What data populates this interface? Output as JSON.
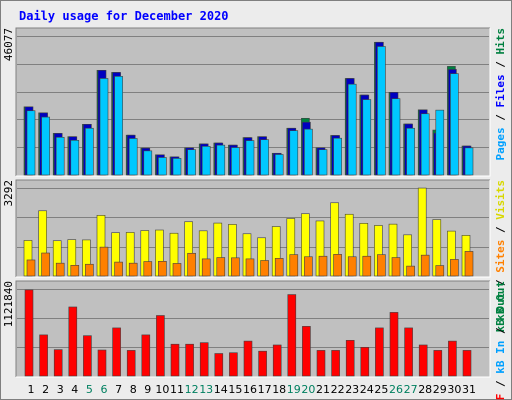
{
  "chart_data": [
    {
      "type": "bar",
      "panel": "hits-files-pages",
      "title": "Daily usage for December 2020",
      "ylabel_max": "46077",
      "ylim": [
        0,
        46077
      ],
      "grid": true,
      "legend": [
        {
          "text": "Pages",
          "color": "#00a0ff"
        },
        {
          "text": "Files",
          "color": "#0000ff"
        },
        {
          "text": "Hits",
          "color": "#008040"
        }
      ],
      "legend_separator": " / ",
      "colors": {
        "hits": "#008040",
        "files": "#0000c0",
        "pages": "#00c8ff"
      },
      "categories": [
        "1",
        "2",
        "3",
        "4",
        "5",
        "6",
        "7",
        "8",
        "9",
        "10",
        "11",
        "12",
        "13",
        "14",
        "15",
        "16",
        "17",
        "18",
        "19",
        "20",
        "21",
        "22",
        "23",
        "24",
        "25",
        "26",
        "27",
        "28",
        "29",
        "30",
        "31"
      ],
      "series": [
        {
          "key": "hits",
          "name": "Hits",
          "values": [
            22600,
            20600,
            13800,
            12700,
            16800,
            34700,
            34000,
            13200,
            8900,
            6700,
            6000,
            9000,
            10300,
            10600,
            9900,
            12400,
            12700,
            7200,
            15500,
            18800,
            9000,
            13100,
            32000,
            26500,
            44000,
            27400,
            16900,
            21600,
            14900,
            36000,
            9600
          ]
        },
        {
          "key": "files",
          "name": "Files",
          "values": [
            22600,
            20600,
            13800,
            12700,
            16800,
            34700,
            34000,
            13200,
            8900,
            6700,
            6000,
            9000,
            10300,
            10600,
            9900,
            12400,
            12700,
            7200,
            15500,
            17500,
            9000,
            13100,
            32000,
            26500,
            44000,
            27400,
            16900,
            21600,
            13900,
            35000,
            9600
          ]
        },
        {
          "key": "pages",
          "name": "Pages",
          "values": [
            21300,
            19200,
            12500,
            11500,
            15500,
            32000,
            32700,
            12100,
            8000,
            5800,
            5500,
            8400,
            9500,
            9900,
            9100,
            11400,
            11700,
            6800,
            14700,
            15200,
            8400,
            12200,
            30100,
            25000,
            42600,
            25300,
            15500,
            20300,
            21500,
            33600,
            9000
          ]
        }
      ]
    },
    {
      "type": "bar",
      "panel": "visits-sites-kbout",
      "ylabel_max": "3292",
      "ylim": [
        0,
        3292
      ],
      "grid": true,
      "legend": [
        {
          "text": "kB Out",
          "color": "#008040"
        },
        {
          "text": "Sites",
          "color": "#ff8000"
        },
        {
          "text": "Visits",
          "color": "#d8d800"
        }
      ],
      "legend_separator": " / ",
      "colors": {
        "visits": "#ffff00",
        "sites": "#ff8000"
      },
      "categories": [
        "1",
        "2",
        "3",
        "4",
        "5",
        "6",
        "7",
        "8",
        "9",
        "10",
        "11",
        "12",
        "13",
        "14",
        "15",
        "16",
        "17",
        "18",
        "19",
        "20",
        "21",
        "22",
        "23",
        "24",
        "25",
        "26",
        "27",
        "28",
        "29",
        "30",
        "31"
      ],
      "series": [
        {
          "key": "visits",
          "name": "Visits",
          "values": [
            1330,
            2440,
            1320,
            1360,
            1350,
            2270,
            1620,
            1630,
            1700,
            1720,
            1600,
            2030,
            1690,
            1980,
            1930,
            1580,
            1430,
            1850,
            2150,
            2330,
            2060,
            2740,
            2310,
            1970,
            1890,
            1940,
            1540,
            3290,
            2110,
            1680,
            1520
          ]
        },
        {
          "key": "sites",
          "name": "Sites",
          "values": [
            600,
            860,
            480,
            400,
            440,
            1080,
            520,
            480,
            540,
            550,
            470,
            850,
            640,
            690,
            680,
            640,
            580,
            660,
            800,
            720,
            740,
            810,
            720,
            740,
            800,
            690,
            370,
            780,
            390,
            620,
            920
          ]
        }
      ]
    },
    {
      "type": "bar",
      "panel": "kbf-kbin-kbout",
      "ylabel_max": "1121840",
      "ylim": [
        0,
        1121840
      ],
      "grid": true,
      "legend": [
        {
          "text": "kB F",
          "color": "#ff0000"
        },
        {
          "text": "kB In",
          "color": "#00a0ff"
        },
        {
          "text": "kB Out",
          "color": "#008040"
        }
      ],
      "legend_separator": " / ",
      "colors": {
        "kbf": "#ff0000"
      },
      "categories": [
        "1",
        "2",
        "3",
        "4",
        "5",
        "6",
        "7",
        "8",
        "9",
        "10",
        "11",
        "12",
        "13",
        "14",
        "15",
        "16",
        "17",
        "18",
        "19",
        "20",
        "21",
        "22",
        "23",
        "24",
        "25",
        "26",
        "27",
        "28",
        "29",
        "30",
        "31"
      ],
      "series": [
        {
          "key": "kbf",
          "name": "kB F",
          "values": [
            1110000,
            530000,
            340000,
            890000,
            520000,
            335000,
            620000,
            330000,
            530000,
            780000,
            410000,
            410000,
            430000,
            290000,
            300000,
            450000,
            320000,
            400000,
            1050000,
            640000,
            330000,
            330000,
            460000,
            370000,
            620000,
            820000,
            620000,
            400000,
            330000,
            450000,
            330000
          ]
        }
      ]
    }
  ],
  "x_labels": {
    "values": [
      "1",
      "2",
      "3",
      "4",
      "5",
      "6",
      "7",
      "8",
      "9",
      "10",
      "11",
      "12",
      "13",
      "14",
      "15",
      "16",
      "17",
      "18",
      "19",
      "20",
      "21",
      "22",
      "23",
      "24",
      "25",
      "26",
      "27",
      "28",
      "29",
      "30",
      "31"
    ],
    "weekend_days": [
      "5",
      "6",
      "12",
      "13",
      "19",
      "20",
      "26",
      "27"
    ],
    "weekday_color": "#000000",
    "weekend_color": "#008060"
  },
  "style": {
    "title_color": "#0000ff",
    "panel_bg": "#c0c0c0",
    "grid_color": "#808080",
    "bar_shadow": "#404040"
  }
}
